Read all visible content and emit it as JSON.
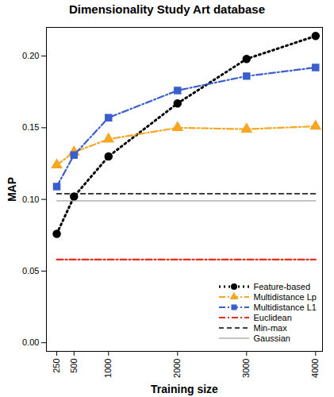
{
  "chart_data": {
    "type": "line",
    "title": "Dimensionality Study Art database",
    "x_label": "Training size",
    "y_label": "MAP",
    "x": [
      250,
      500,
      1000,
      2000,
      3000,
      4000
    ],
    "xlim": [
      100,
      4100
    ],
    "xticks": [
      250,
      500,
      1000,
      2000,
      3000,
      4000
    ],
    "ylim": [
      -0.006,
      0.22
    ],
    "yticks": [
      {
        "value": 0,
        "label": "0.00"
      },
      {
        "value": 0.05,
        "label": "0.05"
      },
      {
        "value": 0.1,
        "label": "0.10"
      },
      {
        "value": 0.15,
        "label": "0.15"
      },
      {
        "value": 0.2,
        "label": "0.20"
      }
    ],
    "grid": false,
    "legend": "bottom-right",
    "series": [
      {
        "name": "Feature-based",
        "color": "#000000",
        "marker": "circle",
        "line_style": "dotted",
        "values": [
          0.076,
          0.102,
          0.13,
          0.167,
          0.198,
          0.214
        ]
      },
      {
        "name": "Multidistance Lp",
        "color": "#f5a623",
        "marker": "triangle",
        "line_style": "dashdot",
        "values": [
          0.124,
          0.133,
          0.142,
          0.15,
          0.149,
          0.151
        ]
      },
      {
        "name": "Multidistance L1",
        "color": "#3a5fcd",
        "marker": "square",
        "line_style": "dashdot",
        "values": [
          0.109,
          0.131,
          0.157,
          0.176,
          0.186,
          0.192
        ]
      },
      {
        "name": "Euclidean",
        "color": "#e03020",
        "line_style": "dashdot",
        "values": [
          0.058,
          0.058,
          0.058,
          0.058,
          0.058,
          0.058
        ]
      },
      {
        "name": "Min-max",
        "color": "#000000",
        "line_style": "dashed",
        "values": [
          0.104,
          0.104,
          0.104,
          0.104,
          0.104,
          0.104
        ]
      },
      {
        "name": "Gaussian",
        "color": "#888888",
        "line_style": "solid",
        "values": [
          0.099,
          0.099,
          0.099,
          0.099,
          0.099,
          0.099
        ]
      }
    ]
  }
}
